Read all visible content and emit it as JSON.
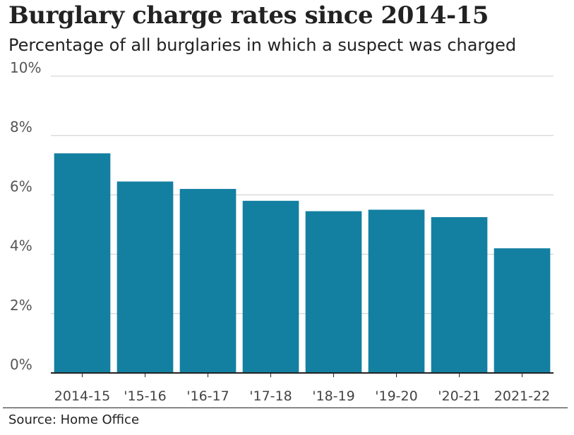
{
  "header": {
    "title": "Burglary charge rates since 2014-15",
    "subtitle": "Percentage of all burglaries in which a suspect was charged"
  },
  "footer": {
    "source": "Source: Home Office"
  },
  "chart_data": {
    "type": "bar",
    "title": "Burglary charge rates since 2014-15",
    "subtitle": "Percentage of all burglaries in which a suspect was charged",
    "categories": [
      "2014-15",
      "'15-16",
      "'16-17",
      "'17-18",
      "'18-19",
      "'19-20",
      "'20-21",
      "2021-22"
    ],
    "values": [
      7.4,
      6.45,
      6.2,
      5.8,
      5.45,
      5.5,
      5.25,
      4.2
    ],
    "y_ticks": [
      0,
      2,
      4,
      6,
      8,
      10
    ],
    "y_tick_labels": [
      "0%",
      "2%",
      "4%",
      "6%",
      "8%",
      "10%"
    ],
    "ylim": [
      0,
      10
    ],
    "xlabel": "",
    "ylabel": "",
    "grid": true,
    "bar_color": "#1380a1",
    "grid_color": "#cbcbcb",
    "axis_color": "#222222",
    "text_color": "#222222"
  }
}
